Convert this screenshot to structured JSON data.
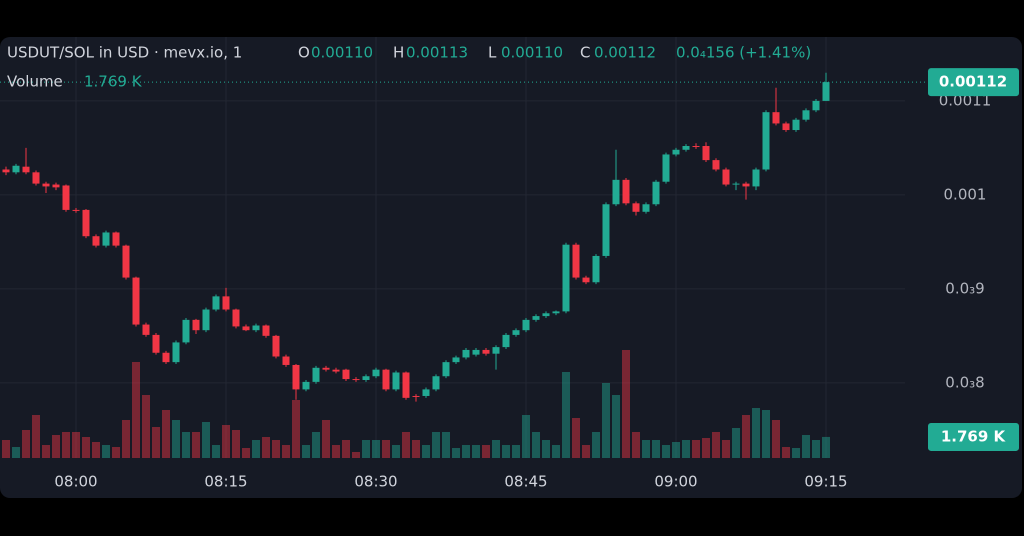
{
  "chart_data": {
    "type": "candlestick",
    "header": {
      "symbol": "USDUT/SOL in USD · mevx.io, 1",
      "open_key": "O",
      "high_key": "H",
      "low_key": "L",
      "close_key": "C",
      "change": "0.0₄156 (+1.41%)",
      "volume_key": "Volume"
    },
    "last_labels": {
      "open": "0.00110",
      "high": "0.00113",
      "low": "0.00110",
      "close": "0.00112",
      "volume": "1.769 K"
    },
    "categories": [
      null,
      null,
      null,
      null,
      null,
      null,
      null,
      "08:00",
      null,
      null,
      null,
      null,
      null,
      null,
      null,
      null,
      null,
      null,
      null,
      null,
      null,
      null,
      "08:15",
      null,
      null,
      null,
      null,
      null,
      null,
      null,
      null,
      null,
      null,
      null,
      null,
      null,
      null,
      "08:30",
      null,
      null,
      null,
      null,
      null,
      null,
      null,
      null,
      null,
      null,
      null,
      null,
      null,
      null,
      "08:45",
      null,
      null,
      null,
      null,
      null,
      null,
      null,
      null,
      null,
      null,
      null,
      null,
      null,
      null,
      "09:00",
      null,
      null,
      null,
      null,
      null,
      null,
      null,
      null,
      null,
      null,
      null,
      null,
      null,
      null,
      "09:15"
    ],
    "open": [
      0.001027,
      0.001024,
      0.00103,
      0.001024,
      0.001012,
      0.001011,
      0.00101,
      0.000984,
      0.000984,
      0.000956,
      0.000946,
      0.00096,
      0.000946,
      0.000912,
      0.000862,
      0.000851,
      0.000832,
      0.000822,
      0.000843,
      0.000867,
      0.000856,
      0.000878,
      0.000892,
      0.000878,
      0.00086,
      0.000856,
      0.000861,
      0.00085,
      0.000828,
      0.000819,
      0.000793,
      0.000801,
      0.000816,
      0.000814,
      0.000814,
      0.000804,
      0.000803,
      0.000807,
      0.000814,
      0.000793,
      0.000811,
      0.000786,
      0.000786,
      0.000793,
      0.000807,
      0.000822,
      0.000827,
      0.00083,
      0.000835,
      0.000831,
      0.000838,
      0.000851,
      0.000856,
      0.000867,
      0.000871,
      0.000874,
      0.000876,
      0.000947,
      0.000912,
      0.000907,
      0.000935,
      0.00099,
      0.001016,
      0.000991,
      0.000982,
      0.00099,
      0.001014,
      0.001043,
      0.001048,
      0.001052,
      0.001052,
      0.001037,
      0.001027,
      0.001011,
      0.001012,
      0.001009,
      0.001027,
      0.001088,
      0.001076,
      0.001069,
      0.00108,
      0.00109,
      0.0011
    ],
    "high": [
      0.00103,
      0.001033,
      0.00105,
      0.001026,
      0.001014,
      0.001013,
      0.001011,
      0.000986,
      0.000985,
      0.000958,
      0.000962,
      0.000961,
      0.000947,
      0.000913,
      0.000864,
      0.000853,
      0.000834,
      0.000845,
      0.000869,
      0.000868,
      0.00088,
      0.000894,
      0.000901,
      0.000879,
      0.000862,
      0.000863,
      0.000862,
      0.000851,
      0.00083,
      0.00082,
      0.000803,
      0.000818,
      0.000818,
      0.000816,
      0.000815,
      0.000806,
      0.000809,
      0.000816,
      0.000815,
      0.000813,
      0.000812,
      0.000788,
      0.000795,
      0.000809,
      0.000824,
      0.000829,
      0.000837,
      0.000837,
      0.000837,
      0.00084,
      0.000853,
      0.000858,
      0.000869,
      0.000873,
      0.000876,
      0.000877,
      0.000949,
      0.000949,
      0.000914,
      0.000937,
      0.000992,
      0.001048,
      0.001018,
      0.000993,
      0.000992,
      0.001016,
      0.001045,
      0.00105,
      0.001054,
      0.001055,
      0.001056,
      0.001039,
      0.001029,
      0.001014,
      0.001014,
      0.001029,
      0.00109,
      0.001114,
      0.001078,
      0.001082,
      0.001092,
      0.001102,
      0.00113
    ],
    "low": [
      0.001021,
      0.001022,
      0.001022,
      0.00101,
      0.001002,
      0.001005,
      0.000982,
      0.000981,
      0.000954,
      0.000944,
      0.000944,
      0.000944,
      0.00091,
      0.00086,
      0.000849,
      0.00083,
      0.00082,
      0.00082,
      0.000841,
      0.000852,
      0.000854,
      0.000876,
      0.000876,
      0.000858,
      0.000855,
      0.000854,
      0.000848,
      0.000826,
      0.000817,
      0.000782,
      0.000791,
      0.000799,
      0.000812,
      0.00081,
      0.000802,
      0.000801,
      0.000801,
      0.000805,
      0.000791,
      0.000791,
      0.000782,
      0.00078,
      0.000784,
      0.000791,
      0.000805,
      0.00082,
      0.000825,
      0.000828,
      0.000829,
      0.000814,
      0.000836,
      0.000849,
      0.000854,
      0.000865,
      0.000869,
      0.000872,
      0.000874,
      0.00091,
      0.000905,
      0.000905,
      0.000933,
      0.000988,
      0.000989,
      0.000978,
      0.00098,
      0.000988,
      0.001012,
      0.001041,
      0.001046,
      0.001049,
      0.001035,
      0.001025,
      0.001009,
      0.001005,
      0.000995,
      0.001005,
      0.001025,
      0.001074,
      0.001067,
      0.001067,
      0.001078,
      0.001088,
      0.0011
    ],
    "close": [
      0.001024,
      0.001031,
      0.001024,
      0.001012,
      0.001009,
      0.001008,
      0.000984,
      0.000983,
      0.000956,
      0.000946,
      0.00096,
      0.000946,
      0.000912,
      0.000862,
      0.000851,
      0.000832,
      0.000822,
      0.000843,
      0.000867,
      0.000856,
      0.000878,
      0.000892,
      0.000878,
      0.00086,
      0.000856,
      0.000861,
      0.00085,
      0.000828,
      0.000819,
      0.000793,
      0.000801,
      0.000816,
      0.000814,
      0.000812,
      0.000804,
      0.000803,
      0.000807,
      0.000814,
      0.000793,
      0.000811,
      0.000784,
      0.000785,
      0.000793,
      0.000807,
      0.000822,
      0.000827,
      0.000835,
      0.000835,
      0.000831,
      0.000838,
      0.000851,
      0.000856,
      0.000867,
      0.000871,
      0.000874,
      0.000876,
      0.000947,
      0.000912,
      0.000907,
      0.000935,
      0.00099,
      0.001016,
      0.000991,
      0.000982,
      0.00099,
      0.001014,
      0.001043,
      0.001048,
      0.001052,
      0.001051,
      0.001037,
      0.001027,
      0.001011,
      0.001012,
      0.001009,
      0.001027,
      0.001088,
      0.001076,
      0.001069,
      0.00108,
      0.00109,
      0.0011,
      0.00112
    ],
    "volume": [
      1512,
      924,
      2352,
      3612,
      1092,
      1932,
      2184,
      2184,
      1764,
      1344,
      1092,
      924,
      3192,
      8064,
      5292,
      2604,
      4032,
      3192,
      2184,
      2184,
      3024,
      1092,
      2772,
      2352,
      840,
      1512,
      1764,
      1512,
      1092,
      4872,
      1092,
      2184,
      3192,
      1092,
      1512,
      504,
      1512,
      1512,
      1512,
      1092,
      2184,
      1512,
      1092,
      2184,
      2184,
      840,
      1092,
      1092,
      1092,
      1512,
      1092,
      1092,
      3612,
      2184,
      1512,
      1092,
      7224,
      3360,
      1092,
      2184,
      6300,
      5292,
      9072,
      2184,
      1512,
      1512,
      1092,
      1344,
      1512,
      1512,
      1680,
      2184,
      1512,
      2520,
      3612,
      4200,
      4032,
      3192,
      924,
      840,
      1932,
      1512,
      1769
    ],
    "ylim": [
      0.00072,
      0.001168
    ],
    "yticks": [
      0.0011,
      0.001,
      {
        "value": 0.0009,
        "label": "0.0₃9"
      },
      {
        "value": 0.0008,
        "label": "0.0₃8"
      }
    ],
    "vlim": [
      0,
      9240
    ],
    "up_color": "#22ab94",
    "down_color": "#f23645",
    "grid": true
  }
}
